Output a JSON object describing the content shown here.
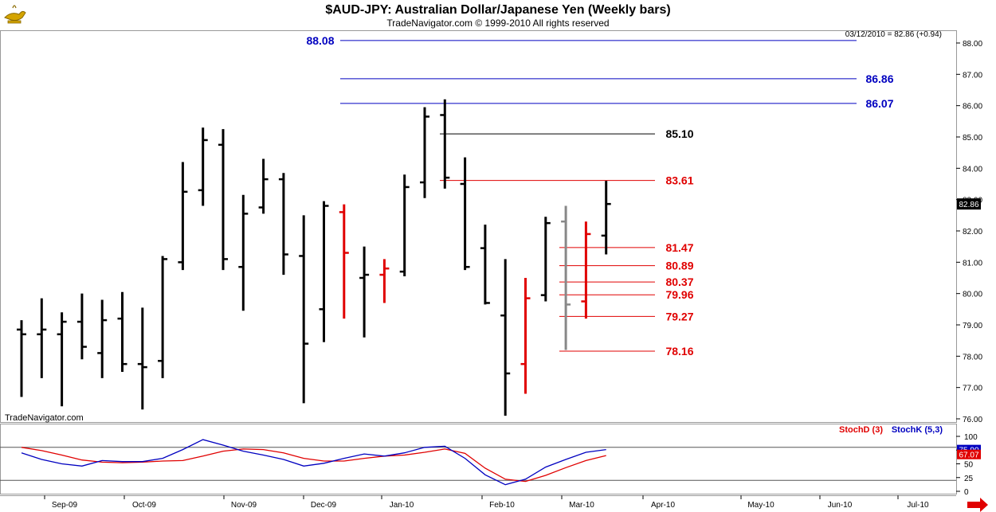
{
  "header": {
    "title": "$AUD-JPY:  Australian Dollar/Japanese Yen  (Weekly bars)",
    "copyright": "TradeNavigator.com © 1999-2010 All rights reserved",
    "last_price_readout": "03/12/2010 = 82.86 (+0.94)",
    "watermark": "TradeNavigator.com",
    "logo_icon": "genie-lamp-icon"
  },
  "colors": {
    "bar_default": "#000000",
    "bar_highlight": "#e00000",
    "bar_gray": "#888888",
    "level_blue": "#0000c0",
    "level_red": "#e00000",
    "level_black": "#000000",
    "stoch_d": "#e00000",
    "stoch_k": "#0000c0"
  },
  "chart_data": [
    {
      "type": "ohlc",
      "title": "$AUD-JPY:  Australian Dollar/Japanese Yen  (Weekly bars)",
      "ylim": [
        75.7,
        88.4
      ],
      "y_ticks": [
        "76.00",
        "77.00",
        "78.00",
        "79.00",
        "80.00",
        "81.00",
        "82.00",
        "83.00",
        "84.00",
        "85.00",
        "86.00",
        "87.00",
        "88.00"
      ],
      "x_ticks": [
        "Sep-09",
        "Oct-09",
        "Nov-09",
        "Dec-09",
        "Jan-10",
        "Feb-10",
        "Mar-10",
        "Apr-10",
        "May-10",
        "Jun-10",
        "Jul-10"
      ],
      "last_price_label": "82.86",
      "bars": [
        {
          "o": 78.85,
          "h": 79.15,
          "l": 76.7,
          "c": 78.7,
          "color": "black"
        },
        {
          "o": 78.7,
          "h": 79.85,
          "l": 77.3,
          "c": 78.85,
          "color": "black"
        },
        {
          "o": 78.7,
          "h": 79.4,
          "l": 76.4,
          "c": 79.1,
          "color": "black"
        },
        {
          "o": 79.1,
          "h": 80.0,
          "l": 77.9,
          "c": 78.3,
          "color": "black"
        },
        {
          "o": 78.1,
          "h": 79.8,
          "l": 77.3,
          "c": 79.15,
          "color": "black"
        },
        {
          "o": 79.2,
          "h": 80.05,
          "l": 77.5,
          "c": 77.75,
          "color": "black"
        },
        {
          "o": 77.75,
          "h": 79.55,
          "l": 76.3,
          "c": 77.65,
          "color": "black"
        },
        {
          "o": 77.85,
          "h": 81.2,
          "l": 77.3,
          "c": 81.1,
          "color": "black"
        },
        {
          "o": 81.0,
          "h": 84.2,
          "l": 80.75,
          "c": 83.25,
          "color": "black"
        },
        {
          "o": 83.3,
          "h": 85.3,
          "l": 82.8,
          "c": 84.9,
          "color": "black"
        },
        {
          "o": 84.75,
          "h": 85.25,
          "l": 80.75,
          "c": 81.1,
          "color": "black"
        },
        {
          "o": 80.85,
          "h": 83.15,
          "l": 79.45,
          "c": 82.55,
          "color": "black"
        },
        {
          "o": 82.75,
          "h": 84.3,
          "l": 82.55,
          "c": 83.65,
          "color": "black"
        },
        {
          "o": 83.65,
          "h": 83.85,
          "l": 80.6,
          "c": 81.25,
          "color": "black"
        },
        {
          "o": 81.2,
          "h": 82.5,
          "l": 76.5,
          "c": 78.4,
          "color": "black"
        },
        {
          "o": 79.5,
          "h": 82.95,
          "l": 78.45,
          "c": 82.8,
          "color": "black"
        },
        {
          "o": 82.6,
          "h": 82.85,
          "l": 79.2,
          "c": 81.3,
          "color": "red"
        },
        {
          "o": 80.5,
          "h": 81.5,
          "l": 78.6,
          "c": 80.6,
          "color": "black"
        },
        {
          "o": 80.6,
          "h": 81.1,
          "l": 79.7,
          "c": 80.8,
          "color": "red"
        },
        {
          "o": 80.7,
          "h": 83.8,
          "l": 80.55,
          "c": 83.4,
          "color": "black"
        },
        {
          "o": 83.55,
          "h": 85.95,
          "l": 83.05,
          "c": 85.65,
          "color": "black"
        },
        {
          "o": 85.7,
          "h": 86.2,
          "l": 83.35,
          "c": 83.7,
          "color": "black"
        },
        {
          "o": 83.5,
          "h": 84.35,
          "l": 80.75,
          "c": 80.85,
          "color": "black"
        },
        {
          "o": 81.45,
          "h": 82.2,
          "l": 79.65,
          "c": 79.7,
          "color": "black"
        },
        {
          "o": 79.3,
          "h": 81.1,
          "l": 76.1,
          "c": 77.45,
          "color": "black"
        },
        {
          "o": 77.75,
          "h": 80.5,
          "l": 76.8,
          "c": 79.85,
          "color": "red"
        },
        {
          "o": 79.95,
          "h": 82.45,
          "l": 79.75,
          "c": 82.25,
          "color": "black"
        },
        {
          "o": 82.3,
          "h": 82.8,
          "l": 78.2,
          "c": 79.65,
          "color": "gray"
        },
        {
          "o": 79.75,
          "h": 82.3,
          "l": 79.2,
          "c": 81.9,
          "color": "red"
        },
        {
          "o": 81.85,
          "h": 83.6,
          "l": 81.25,
          "c": 82.86,
          "color": "black"
        }
      ],
      "levels": [
        {
          "value": 88.08,
          "label": "88.08",
          "color": "blue"
        },
        {
          "value": 86.86,
          "label": "86.86",
          "color": "blue"
        },
        {
          "value": 86.07,
          "label": "86.07",
          "color": "blue"
        },
        {
          "value": 85.1,
          "label": "85.10",
          "color": "black"
        },
        {
          "value": 83.61,
          "label": "83.61",
          "color": "red"
        },
        {
          "value": 81.47,
          "label": "81.47",
          "color": "red"
        },
        {
          "value": 80.89,
          "label": "80.89",
          "color": "red"
        },
        {
          "value": 80.37,
          "label": "80.37",
          "color": "red"
        },
        {
          "value": 79.96,
          "label": "79.96",
          "color": "red"
        },
        {
          "value": 79.27,
          "label": "79.27",
          "color": "red"
        },
        {
          "value": 78.16,
          "label": "78.16",
          "color": "red"
        }
      ]
    },
    {
      "type": "line",
      "ylim": [
        0,
        100
      ],
      "y_ticks": [
        "100",
        "75",
        "50",
        "25",
        "0"
      ],
      "reference_lines": [
        80,
        20
      ],
      "series": [
        {
          "name": "StochD (3)",
          "color": "red",
          "values": [
            80,
            74,
            66,
            57,
            53,
            52,
            53,
            55,
            56,
            64,
            73,
            77,
            76,
            70,
            60,
            55,
            55,
            60,
            64,
            66,
            71,
            77,
            69,
            42,
            22,
            18,
            29,
            43,
            56,
            65
          ]
        },
        {
          "name": "StochK (5,3)",
          "color": "blue",
          "values": [
            70,
            58,
            50,
            46,
            56,
            54,
            54,
            60,
            76,
            94,
            84,
            73,
            66,
            58,
            46,
            51,
            60,
            68,
            64,
            70,
            80,
            82,
            60,
            30,
            12,
            22,
            44,
            58,
            71,
            76
          ]
        }
      ],
      "last_values": [
        "75.90",
        "67.07"
      ]
    }
  ]
}
